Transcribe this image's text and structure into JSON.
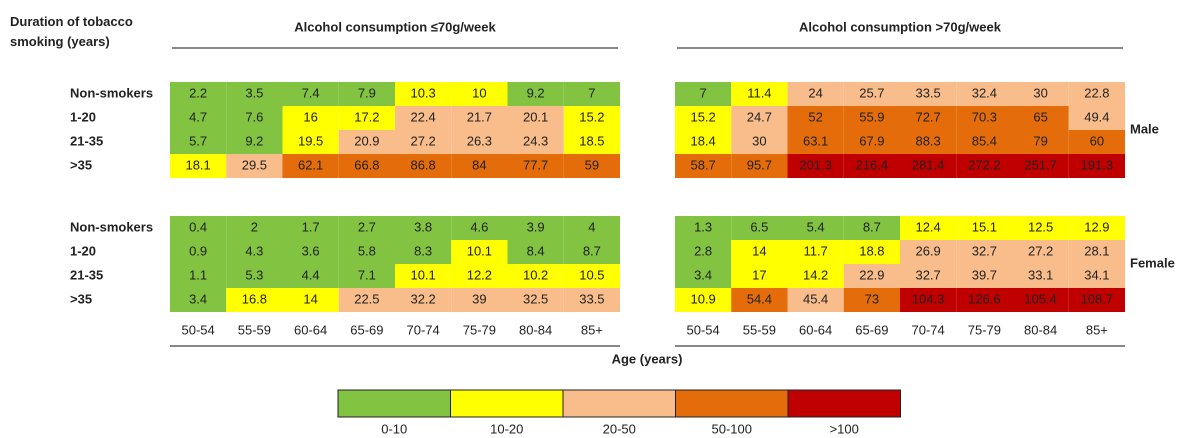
{
  "chart_data": {
    "type": "heatmap",
    "y_title": "Duration of tobacco smoking (years)",
    "x_title": "Age (years)",
    "panels": [
      "Alcohol consumption ≤70g/week",
      "Alcohol  consumption >70g/week"
    ],
    "groups": [
      "Male",
      "Female"
    ],
    "rows": [
      "Non-smokers",
      "1-20",
      "21-35",
      ">35"
    ],
    "categories": [
      "50-54",
      "55-59",
      "60-64",
      "65-69",
      "70-74",
      "75-79",
      "80-84",
      "85+"
    ],
    "values": [
      [
        [
          [
            2.2,
            3.5,
            7.4,
            7.9,
            10.3,
            10.0,
            9.2,
            7.0
          ],
          [
            7.0,
            11.4,
            24.0,
            25.7,
            33.5,
            32.4,
            30.0,
            22.8
          ]
        ],
        [
          [
            4.7,
            7.6,
            16.0,
            17.2,
            22.4,
            21.7,
            20.1,
            15.2
          ],
          [
            15.2,
            24.7,
            52.0,
            55.9,
            72.7,
            70.3,
            65.0,
            49.4
          ]
        ],
        [
          [
            5.7,
            9.2,
            19.5,
            20.9,
            27.2,
            26.3,
            24.3,
            18.5
          ],
          [
            18.4,
            30.0,
            63.1,
            67.9,
            88.3,
            85.4,
            79.0,
            60.0
          ]
        ],
        [
          [
            18.1,
            29.5,
            62.1,
            66.8,
            86.8,
            84.0,
            77.7,
            59.0
          ],
          [
            58.7,
            95.7,
            201.3,
            216.4,
            281.4,
            272.2,
            251.7,
            191.3
          ]
        ]
      ],
      [
        [
          [
            0.4,
            2.0,
            1.7,
            2.7,
            3.8,
            4.6,
            3.9,
            4.0
          ],
          [
            1.3,
            6.5,
            5.4,
            8.7,
            12.4,
            15.1,
            12.5,
            12.9
          ]
        ],
        [
          [
            0.9,
            4.3,
            3.6,
            5.8,
            8.3,
            10.1,
            8.4,
            8.7
          ],
          [
            2.8,
            14.0,
            11.7,
            18.8,
            26.9,
            32.7,
            27.2,
            28.1
          ]
        ],
        [
          [
            1.1,
            5.3,
            4.4,
            7.1,
            10.1,
            12.2,
            10.2,
            10.5
          ],
          [
            3.4,
            17.0,
            14.2,
            22.9,
            32.7,
            39.7,
            33.1,
            34.1
          ]
        ],
        [
          [
            3.4,
            16.8,
            14.0,
            22.5,
            32.2,
            39.0,
            32.5,
            33.5
          ],
          [
            10.9,
            54.4,
            45.4,
            73.0,
            104.3,
            126.6,
            105.4,
            108.7
          ]
        ]
      ]
    ],
    "legend": [
      {
        "label": "0-10",
        "color": "#82c341"
      },
      {
        "label": "10-20",
        "color": "#ffff00"
      },
      {
        "label": "20-50",
        "color": "#f8bd8b"
      },
      {
        "label": "50-100",
        "color": "#e46c0a"
      },
      {
        "label": ">100",
        "color": "#c00000"
      }
    ]
  }
}
